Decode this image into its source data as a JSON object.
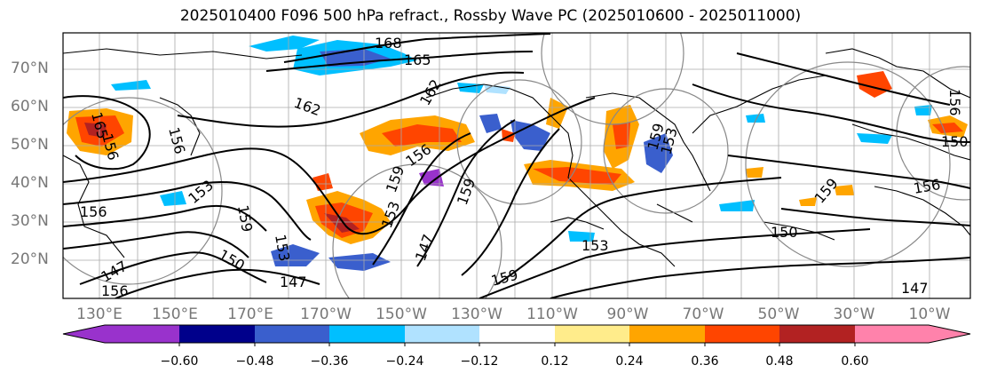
{
  "title": "2025010400 F096 500 hPa refract., Rossby Wave PC (2025010600 - 2025011000)",
  "lat_labels": [
    "70°N",
    "60°N",
    "50°N",
    "40°N",
    "30°N",
    "20°N"
  ],
  "lon_labels": [
    "130°E",
    "150°E",
    "170°E",
    "170°W",
    "150°W",
    "130°W",
    "110°W",
    "90°W",
    "70°W",
    "50°W",
    "30°W",
    "10°W"
  ],
  "contour_labels": [
    "168",
    "165",
    "162",
    "162",
    "165",
    "156",
    "159",
    "153",
    "156",
    "150",
    "153",
    "156",
    "159",
    "156",
    "159",
    "147",
    "153",
    "147",
    "150",
    "147",
    "153",
    "156",
    "159",
    "153",
    "159",
    "150",
    "156",
    "159",
    "156",
    "147"
  ],
  "colorbar": {
    "tick_labels": [
      "−0.60",
      "−0.48",
      "−0.36",
      "−0.24",
      "−0.12",
      "0.12",
      "0.24",
      "0.36",
      "0.48",
      "0.60"
    ],
    "colors": [
      "#9932cc",
      "#00008b",
      "#3a5fcd",
      "#00bfff",
      "#b0e2ff",
      "#ffffff",
      "#ffec8b",
      "#ffa500",
      "#ff4500",
      "#b22222",
      "#ff82ab"
    ]
  }
}
